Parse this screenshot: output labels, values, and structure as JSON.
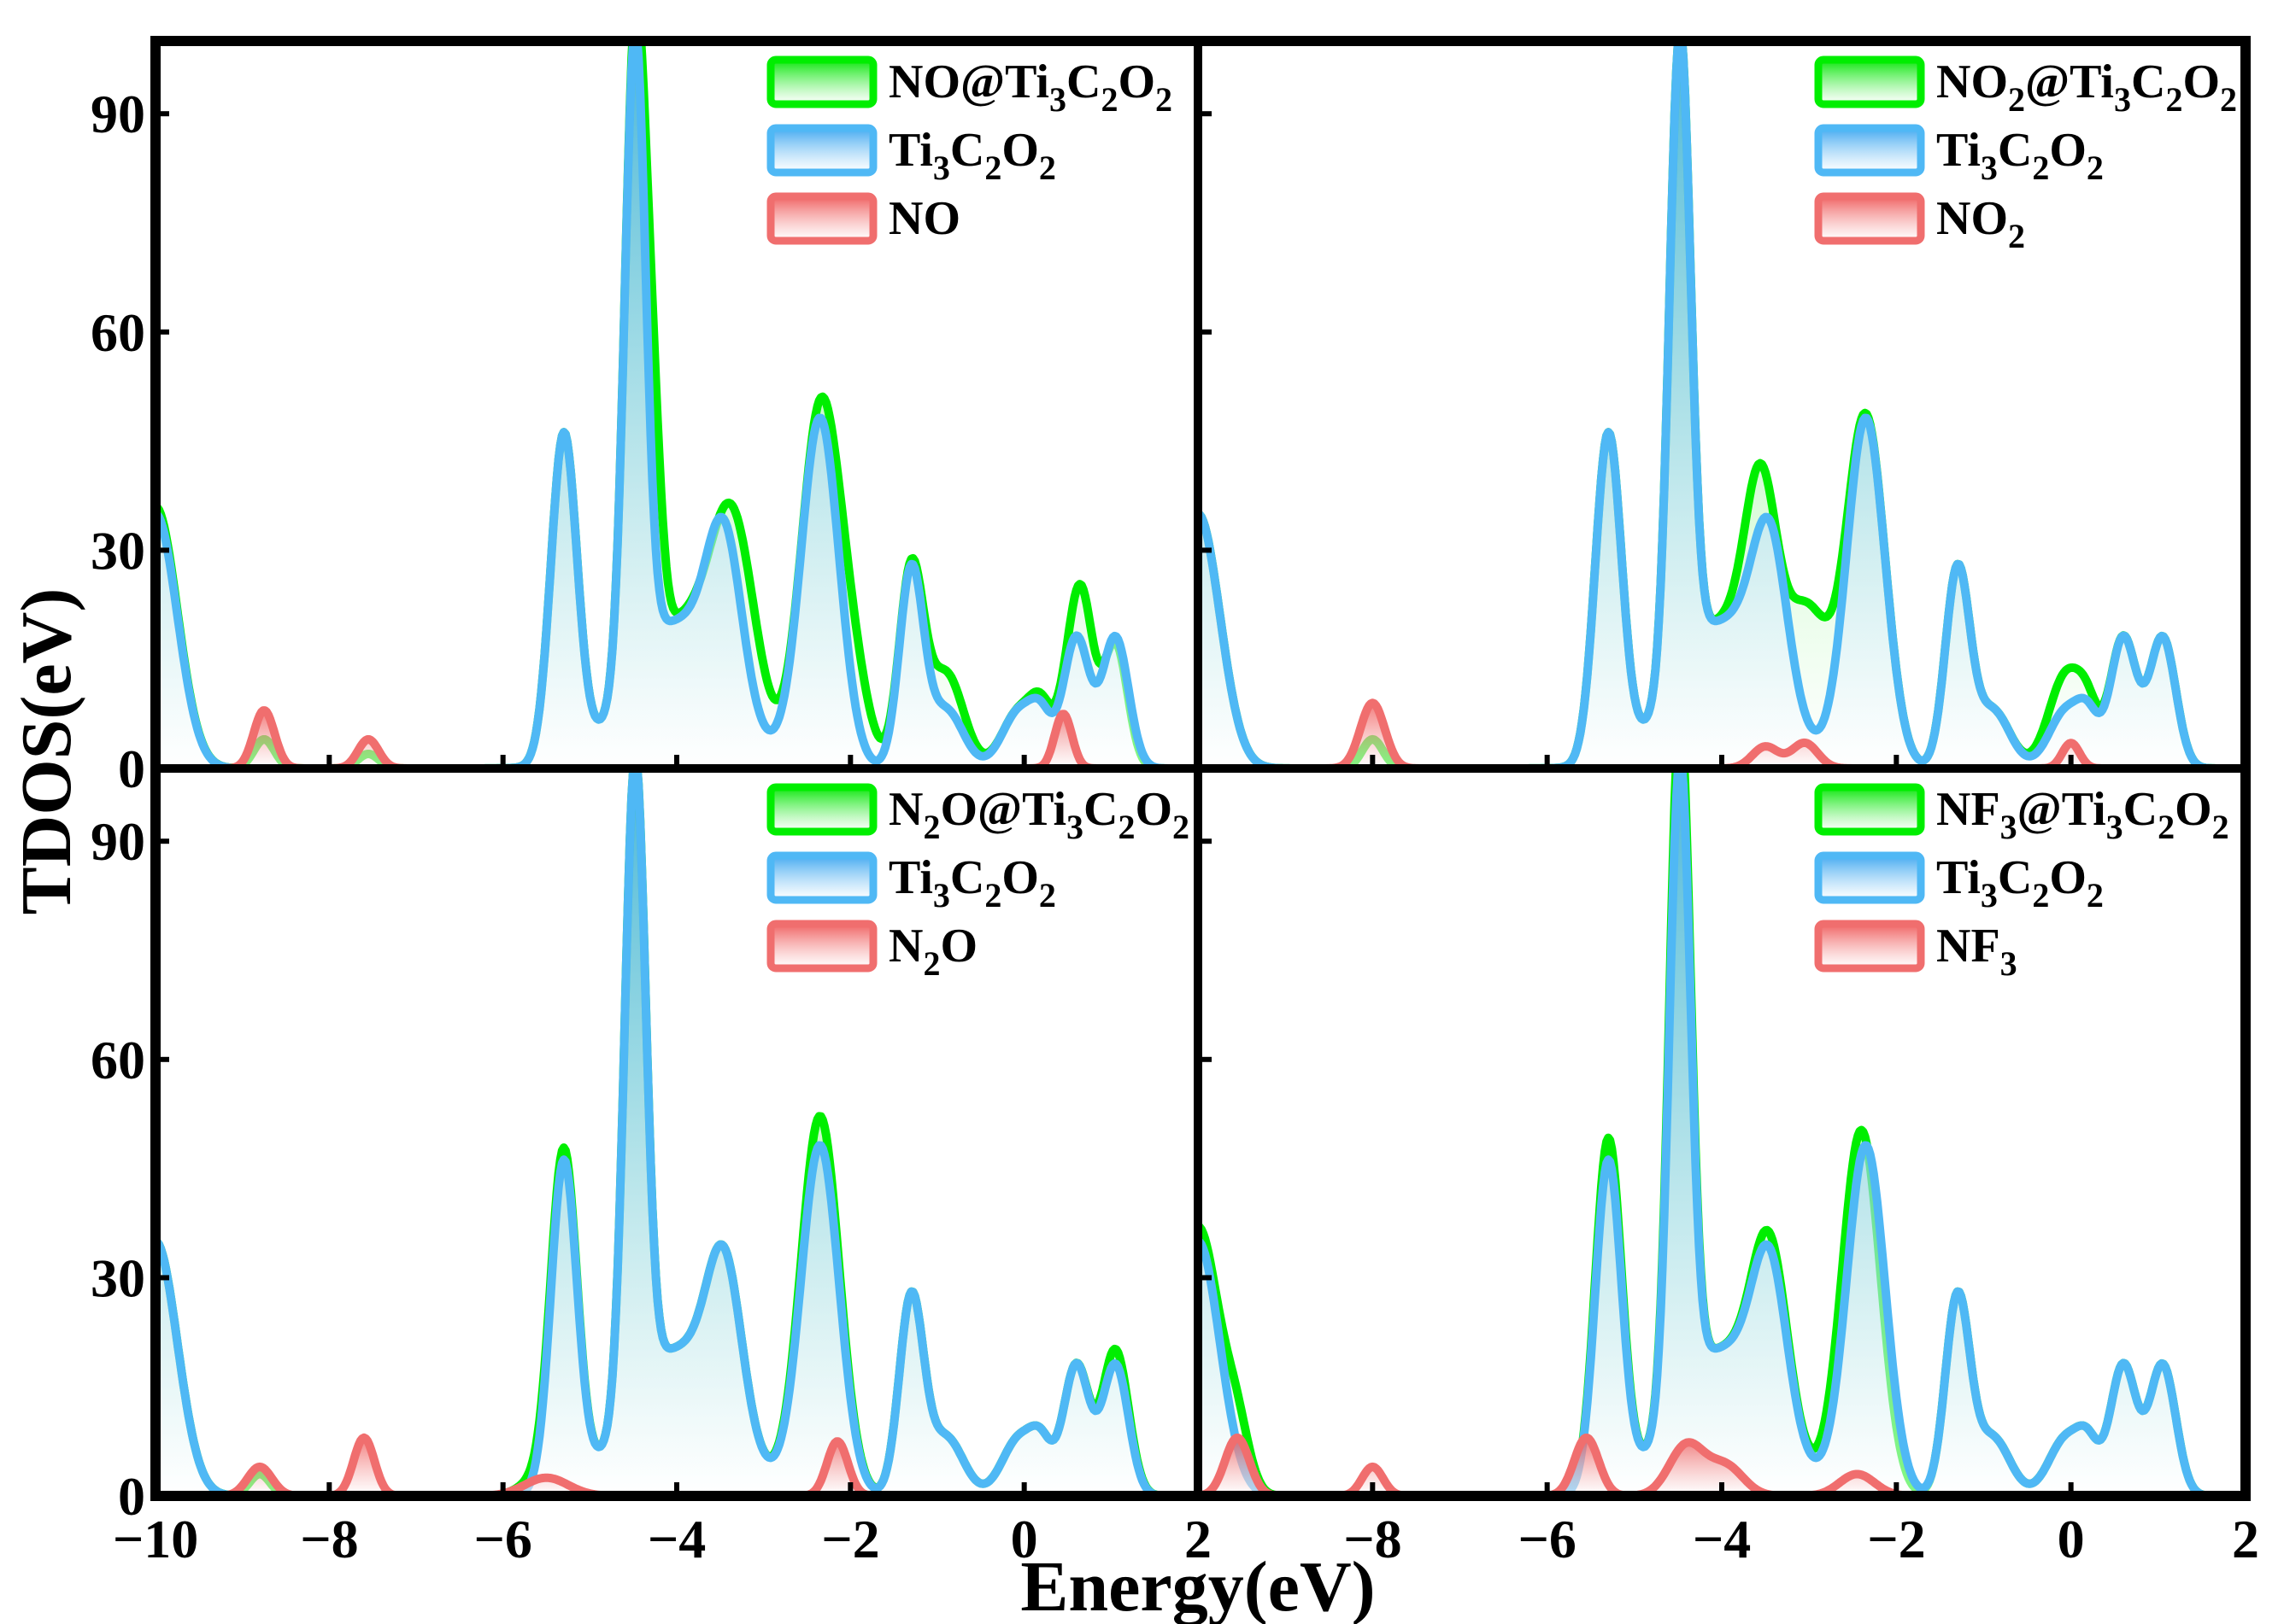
{
  "figure": {
    "xlabel": "Energy(eV)",
    "ylabel": "TDOS(eV)"
  },
  "colors": {
    "composite": "#00ee00",
    "substrate": "#4fb8f5",
    "gas": "#f06e6e",
    "frame": "#000000"
  },
  "chart_data": [
    {
      "type": "area",
      "panel": "top-left",
      "xlim": [
        -10,
        2
      ],
      "ylim": [
        0,
        100
      ],
      "xticks": [
        -10,
        -8,
        -6,
        -4,
        -2,
        0,
        2
      ],
      "yticks": [
        0,
        30,
        60,
        90
      ],
      "legend_position": "top-right",
      "series": [
        {
          "name": "NO@Ti3C2O2",
          "role": "composite",
          "legend": {
            "pre": "NO@Ti",
            "subs": [
              [
                "3",
                "C"
              ],
              [
                "2",
                "O"
              ],
              [
                "2",
                ""
              ]
            ]
          },
          "peaks": [
            [
              -10,
              36,
              0.25
            ],
            [
              -5.3,
              45,
              0.15
            ],
            [
              -4.48,
              88,
              0.12
            ],
            [
              -4.28,
              25,
              0.1
            ],
            [
              -4.0,
              20,
              0.55
            ],
            [
              -3.35,
              26,
              0.25
            ],
            [
              -2.35,
              48,
              0.22
            ],
            [
              -2.0,
              12,
              0.2
            ],
            [
              -1.3,
              27,
              0.14
            ],
            [
              -0.9,
              13,
              0.2
            ],
            [
              -0.05,
              8,
              0.2
            ],
            [
              0.2,
              6,
              0.12
            ],
            [
              0.65,
              24,
              0.14
            ],
            [
              1.05,
              17,
              0.14
            ],
            [
              -8.75,
              4,
              0.12
            ],
            [
              -7.55,
              2,
              0.12
            ],
            [
              0.45,
              4,
              0.12
            ]
          ]
        },
        {
          "name": "Ti3C2O2",
          "role": "substrate",
          "legend": {
            "pre": "Ti",
            "subs": [
              [
                "3",
                "C"
              ],
              [
                "2",
                "O"
              ],
              [
                "2",
                ""
              ]
            ]
          },
          "peaks": [
            [
              -10,
              35,
              0.25
            ],
            [
              -5.3,
              45,
              0.15
            ],
            [
              -4.48,
              88,
              0.12
            ],
            [
              -4.0,
              20,
              0.55
            ],
            [
              -3.45,
              22,
              0.2
            ],
            [
              -2.35,
              48,
              0.22
            ],
            [
              -1.3,
              27,
              0.14
            ],
            [
              -0.9,
              8,
              0.2
            ],
            [
              -0.05,
              8,
              0.2
            ],
            [
              0.2,
              5,
              0.12
            ],
            [
              0.6,
              18,
              0.15
            ],
            [
              1.05,
              18,
              0.15
            ]
          ]
        },
        {
          "name": "NO",
          "role": "gas",
          "legend": {
            "pre": "NO",
            "subs": []
          },
          "peaks": [
            [
              -8.75,
              8,
              0.12
            ],
            [
              -7.55,
              4,
              0.12
            ],
            [
              0.45,
              7.5,
              0.1
            ]
          ]
        }
      ]
    },
    {
      "type": "area",
      "panel": "top-right",
      "xlim": [
        -10,
        2
      ],
      "ylim": [
        0,
        100
      ],
      "xticks": [
        -10,
        -8,
        -6,
        -4,
        -2,
        0,
        2
      ],
      "yticks": [
        0,
        30,
        60,
        90
      ],
      "legend_position": "top-right",
      "series": [
        {
          "name": "NO2@Ti3C2O2",
          "role": "composite",
          "legend": {
            "pre": "NO",
            "subs": [
              [
                "2",
                "@Ti"
              ],
              [
                "3",
                "C"
              ],
              [
                "2",
                "O"
              ],
              [
                "2",
                ""
              ]
            ]
          },
          "peaks": [
            [
              -10,
              35,
              0.25
            ],
            [
              -5.3,
              45,
              0.15
            ],
            [
              -4.48,
              88,
              0.12
            ],
            [
              -4.0,
              20,
              0.55
            ],
            [
              -3.55,
              26,
              0.18
            ],
            [
              -3.0,
              18,
              0.25
            ],
            [
              -2.35,
              48,
              0.22
            ],
            [
              -1.3,
              27,
              0.14
            ],
            [
              -0.9,
              8,
              0.2
            ],
            [
              -0.05,
              13,
              0.2
            ],
            [
              0.2,
              5,
              0.12
            ],
            [
              0.6,
              18,
              0.15
            ],
            [
              1.05,
              18,
              0.15
            ],
            [
              -8.0,
              4,
              0.12
            ]
          ]
        },
        {
          "name": "Ti3C2O2",
          "role": "substrate",
          "legend": {
            "pre": "Ti",
            "subs": [
              [
                "3",
                "C"
              ],
              [
                "2",
                "O"
              ],
              [
                "2",
                ""
              ]
            ]
          },
          "peaks": [
            [
              -10,
              35,
              0.25
            ],
            [
              -5.3,
              45,
              0.15
            ],
            [
              -4.48,
              88,
              0.12
            ],
            [
              -4.0,
              20,
              0.55
            ],
            [
              -3.45,
              22,
              0.2
            ],
            [
              -2.35,
              48,
              0.22
            ],
            [
              -1.3,
              27,
              0.14
            ],
            [
              -0.9,
              8,
              0.2
            ],
            [
              -0.05,
              8,
              0.2
            ],
            [
              0.2,
              5,
              0.12
            ],
            [
              0.6,
              18,
              0.15
            ],
            [
              1.05,
              18,
              0.15
            ]
          ]
        },
        {
          "name": "NO2",
          "role": "gas",
          "legend": {
            "pre": "NO",
            "subs": [
              [
                "2",
                ""
              ]
            ]
          },
          "peaks": [
            [
              -8.0,
              9,
              0.14
            ],
            [
              -3.5,
              3,
              0.15
            ],
            [
              -3.05,
              3.5,
              0.15
            ],
            [
              0.0,
              3.5,
              0.1
            ]
          ]
        }
      ]
    },
    {
      "type": "area",
      "panel": "bottom-left",
      "xlim": [
        -10,
        2
      ],
      "ylim": [
        0,
        100
      ],
      "xticks": [
        -10,
        -8,
        -6,
        -4,
        -2,
        0,
        2
      ],
      "yticks": [
        0,
        30,
        60,
        90
      ],
      "legend_position": "top-right",
      "series": [
        {
          "name": "N2O@Ti3C2O2",
          "role": "composite",
          "legend": {
            "pre": "N",
            "subs": [
              [
                "2",
                "O@Ti"
              ],
              [
                "3",
                "C"
              ],
              [
                "2",
                "O"
              ],
              [
                "2",
                ""
              ]
            ]
          },
          "peaks": [
            [
              -10,
              35,
              0.25
            ],
            [
              -5.3,
              46,
              0.15
            ],
            [
              -4.48,
              88,
              0.12
            ],
            [
              -4.0,
              20,
              0.55
            ],
            [
              -3.45,
              22,
              0.2
            ],
            [
              -2.35,
              52,
              0.22
            ],
            [
              -1.3,
              27,
              0.14
            ],
            [
              -0.9,
              8,
              0.2
            ],
            [
              -0.05,
              8,
              0.2
            ],
            [
              0.2,
              5,
              0.12
            ],
            [
              0.6,
              18,
              0.15
            ],
            [
              1.05,
              20,
              0.15
            ],
            [
              -8.8,
              3,
              0.12
            ],
            [
              -5.6,
              2,
              0.2
            ]
          ]
        },
        {
          "name": "Ti3C2O2",
          "role": "substrate",
          "legend": {
            "pre": "Ti",
            "subs": [
              [
                "3",
                "C"
              ],
              [
                "2",
                "O"
              ],
              [
                "2",
                ""
              ]
            ]
          },
          "peaks": [
            [
              -10,
              35,
              0.25
            ],
            [
              -5.3,
              45,
              0.15
            ],
            [
              -4.48,
              88,
              0.12
            ],
            [
              -4.0,
              20,
              0.55
            ],
            [
              -3.45,
              22,
              0.2
            ],
            [
              -2.35,
              48,
              0.22
            ],
            [
              -1.3,
              27,
              0.14
            ],
            [
              -0.9,
              8,
              0.2
            ],
            [
              -0.05,
              8,
              0.2
            ],
            [
              0.2,
              5,
              0.12
            ],
            [
              0.6,
              18,
              0.15
            ],
            [
              1.05,
              18,
              0.15
            ]
          ]
        },
        {
          "name": "N2O",
          "role": "gas",
          "legend": {
            "pre": "N",
            "subs": [
              [
                "2",
                "O"
              ]
            ]
          },
          "peaks": [
            [
              -8.8,
              4,
              0.14
            ],
            [
              -7.6,
              8,
              0.12
            ],
            [
              -5.5,
              2.5,
              0.25
            ],
            [
              -2.15,
              7.5,
              0.12
            ]
          ]
        }
      ]
    },
    {
      "type": "area",
      "panel": "bottom-right",
      "xlim": [
        -10,
        2
      ],
      "ylim": [
        0,
        100
      ],
      "xticks": [
        -10,
        -8,
        -6,
        -4,
        -2,
        0,
        2
      ],
      "yticks": [
        0,
        30,
        60,
        90
      ],
      "legend_position": "top-right",
      "series": [
        {
          "name": "NF3@Ti3C2O2",
          "role": "composite",
          "legend": {
            "pre": "NF",
            "subs": [
              [
                "3",
                "@Ti"
              ],
              [
                "3",
                "C"
              ],
              [
                "2",
                "O"
              ],
              [
                "2",
                ""
              ]
            ]
          },
          "peaks": [
            [
              -10,
              37,
              0.25
            ],
            [
              -9.55,
              7,
              0.14
            ],
            [
              -5.3,
              48,
              0.15
            ],
            [
              -4.48,
              94,
              0.12
            ],
            [
              -4.0,
              20,
              0.55
            ],
            [
              -3.45,
              24,
              0.2
            ],
            [
              -2.4,
              50,
              0.22
            ],
            [
              -1.3,
              27,
              0.14
            ],
            [
              -0.9,
              8,
              0.2
            ],
            [
              -0.05,
              8,
              0.2
            ],
            [
              0.2,
              5,
              0.12
            ],
            [
              0.6,
              18,
              0.15
            ],
            [
              1.05,
              18,
              0.15
            ]
          ]
        },
        {
          "name": "Ti3C2O2",
          "role": "substrate",
          "legend": {
            "pre": "Ti",
            "subs": [
              [
                "3",
                "C"
              ],
              [
                "2",
                "O"
              ],
              [
                "2",
                ""
              ]
            ]
          },
          "peaks": [
            [
              -10,
              35,
              0.25
            ],
            [
              -5.3,
              45,
              0.15
            ],
            [
              -4.48,
              88,
              0.12
            ],
            [
              -4.0,
              20,
              0.55
            ],
            [
              -3.45,
              22,
              0.2
            ],
            [
              -2.35,
              48,
              0.22
            ],
            [
              -1.3,
              27,
              0.14
            ],
            [
              -0.9,
              8,
              0.2
            ],
            [
              -0.05,
              8,
              0.2
            ],
            [
              0.2,
              5,
              0.12
            ],
            [
              0.6,
              18,
              0.15
            ],
            [
              1.05,
              18,
              0.15
            ]
          ]
        },
        {
          "name": "NF3",
          "role": "gas",
          "legend": {
            "pre": "NF",
            "subs": [
              [
                "3",
                ""
              ]
            ]
          },
          "peaks": [
            [
              -9.55,
              8,
              0.14
            ],
            [
              -8.0,
              4,
              0.12
            ],
            [
              -5.55,
              8,
              0.14
            ],
            [
              -4.4,
              7,
              0.2
            ],
            [
              -3.95,
              4,
              0.2
            ],
            [
              -2.45,
              3,
              0.2
            ]
          ]
        }
      ]
    }
  ]
}
